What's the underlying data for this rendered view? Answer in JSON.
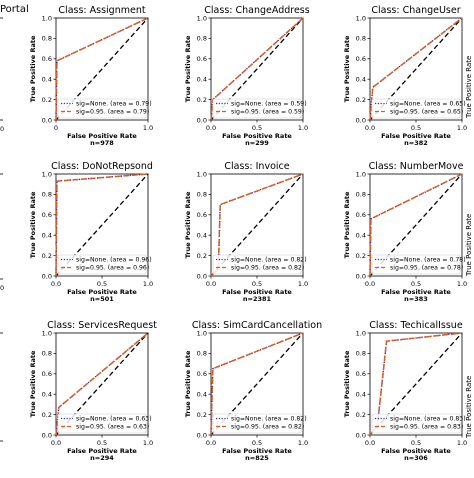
{
  "page": {
    "left_fragments": {
      "title": "Portal",
      "tick_zero": "0"
    },
    "right_fragment_label": "True Positive Rate"
  },
  "chart_data": [
    {
      "type": "line",
      "title": "Class: Assignment",
      "n_label": "n=978",
      "xlabel": "False Positive Rate",
      "ylabel": "True Positive Rate",
      "xlim": [
        0,
        1
      ],
      "ylim": [
        0,
        1
      ],
      "xticks": [
        "0",
        "1.0"
      ],
      "yticks": [
        "0.0",
        "0.2",
        "0.4",
        "0.6",
        "0.8",
        "1.0"
      ],
      "legend_position": "lower-right",
      "series": [
        {
          "name": "sig=None. (area = 0.79)",
          "style": "dotted",
          "color": "#2b2fa8",
          "points": [
            [
              0,
              0
            ],
            [
              0.01,
              0.58
            ],
            [
              1,
              1
            ]
          ]
        },
        {
          "name": "sig=0.95. (area = 0.79)",
          "style": "dashed",
          "color": "#e05a1e",
          "points": [
            [
              0,
              0
            ],
            [
              0.01,
              0.58
            ],
            [
              1,
              1
            ]
          ]
        }
      ],
      "reference_line": {
        "style": "dashed",
        "color": "#000000",
        "points": [
          [
            0,
            0
          ],
          [
            1,
            1
          ]
        ]
      }
    },
    {
      "type": "line",
      "title": "Class: ChangeAddress",
      "n_label": "n=299",
      "xlabel": "False Positive Rate",
      "ylabel": "True Positive Rate",
      "xlim": [
        0,
        1
      ],
      "ylim": [
        0,
        1
      ],
      "xticks": [
        "0.0",
        "0.5",
        "1.0"
      ],
      "yticks": [
        "0.0",
        "0.2",
        "0.4",
        "0.6",
        "0.8",
        "1.0"
      ],
      "legend_position": "lower-right",
      "series": [
        {
          "name": "sig=None. (area = 0.59)",
          "style": "dotted",
          "color": "#2b2fa8",
          "points": [
            [
              0,
              0
            ],
            [
              0.02,
              0.2
            ],
            [
              1,
              1
            ]
          ]
        },
        {
          "name": "sig=0.95. (area = 0.59)",
          "style": "dashed",
          "color": "#e05a1e",
          "points": [
            [
              0,
              0
            ],
            [
              0.02,
              0.2
            ],
            [
              1,
              1
            ]
          ]
        }
      ],
      "reference_line": {
        "style": "dashed",
        "color": "#000000",
        "points": [
          [
            0,
            0
          ],
          [
            1,
            1
          ]
        ]
      }
    },
    {
      "type": "line",
      "title": "Class: ChangeUser",
      "n_label": "n=382",
      "xlabel": "False Positive Rate",
      "ylabel": "True Positive Rate",
      "xlim": [
        0,
        1
      ],
      "ylim": [
        0,
        1
      ],
      "xticks": [
        "0.0",
        "0.5",
        "1.0"
      ],
      "yticks": [
        "0.0",
        "0.2",
        "0.4",
        "0.6",
        "0.8",
        "1.0"
      ],
      "legend_position": "lower-right",
      "series": [
        {
          "name": "sig=None. (area = 0.65)",
          "style": "dotted",
          "color": "#2b2fa8",
          "points": [
            [
              0,
              0
            ],
            [
              0.03,
              0.32
            ],
            [
              1,
              1
            ]
          ]
        },
        {
          "name": "sig=0.95. (area = 0.65)",
          "style": "dashed",
          "color": "#e05a1e",
          "points": [
            [
              0,
              0
            ],
            [
              0.03,
              0.32
            ],
            [
              1,
              1
            ]
          ]
        }
      ],
      "reference_line": {
        "style": "dashed",
        "color": "#000000",
        "points": [
          [
            0,
            0
          ],
          [
            1,
            1
          ]
        ]
      }
    },
    {
      "type": "line",
      "title": "Class: DoNotRepsond",
      "n_label": "n=501",
      "xlabel": "False Positive Rate",
      "ylabel": "True Positive Rate",
      "xlim": [
        0,
        1
      ],
      "ylim": [
        0,
        1
      ],
      "xticks": [
        "0.0",
        "0.5",
        "1.0"
      ],
      "yticks": [
        "0.0",
        "0.2",
        "0.4",
        "0.6",
        "0.8",
        "1.0"
      ],
      "legend_position": "lower-right",
      "series": [
        {
          "name": "sig=None. (area = 0.96)",
          "style": "dotted",
          "color": "#2b2fa8",
          "points": [
            [
              0,
              0
            ],
            [
              0.01,
              0.93
            ],
            [
              1,
              1
            ]
          ]
        },
        {
          "name": "sig=0.95. (area = 0.96)",
          "style": "dashed",
          "color": "#e05a1e",
          "points": [
            [
              0,
              0
            ],
            [
              0.01,
              0.93
            ],
            [
              1,
              1
            ]
          ]
        }
      ],
      "reference_line": {
        "style": "dashed",
        "color": "#000000",
        "points": [
          [
            0,
            0
          ],
          [
            1,
            1
          ]
        ]
      }
    },
    {
      "type": "line",
      "title": "Class: Invoice",
      "n_label": "n=2381",
      "xlabel": "False Positive Rate",
      "ylabel": "True Positive Rate",
      "xlim": [
        0,
        1
      ],
      "ylim": [
        0,
        1
      ],
      "xticks": [
        "0.0",
        "0.5",
        "1.0"
      ],
      "yticks": [
        "0.0",
        "0.2",
        "0.4",
        "0.6",
        "0.8",
        "1.0"
      ],
      "legend_position": "lower-right",
      "series": [
        {
          "name": "sig=None. (area = 0.82)",
          "style": "dotted",
          "color": "#2b2fa8",
          "points": [
            [
              0,
              0
            ],
            [
              0.08,
              0.07
            ],
            [
              0.1,
              0.7
            ],
            [
              1,
              1
            ]
          ]
        },
        {
          "name": "sig=0.95. (area = 0.82)",
          "style": "dashed",
          "color": "#e05a1e",
          "points": [
            [
              0,
              0
            ],
            [
              0.08,
              0.07
            ],
            [
              0.1,
              0.7
            ],
            [
              1,
              1
            ]
          ]
        }
      ],
      "reference_line": {
        "style": "dashed",
        "color": "#000000",
        "points": [
          [
            0,
            0
          ],
          [
            1,
            1
          ]
        ]
      }
    },
    {
      "type": "line",
      "title": "Class: NumberMove",
      "n_label": "n=383",
      "xlabel": "False Positive Rate",
      "ylabel": "True Positive Rate",
      "xlim": [
        0,
        1
      ],
      "ylim": [
        0,
        1
      ],
      "xticks": [
        "0.0",
        "0.5",
        "1.0"
      ],
      "yticks": [
        "0.0",
        "0.2",
        "0.4",
        "0.6",
        "0.8",
        "1.0"
      ],
      "legend_position": "lower-right",
      "series": [
        {
          "name": "sig=None. (area = 0.78)",
          "style": "dotted",
          "color": "#2b2fa8",
          "points": [
            [
              0,
              0
            ],
            [
              0.01,
              0.56
            ],
            [
              1,
              1
            ]
          ]
        },
        {
          "name": "sig=0.95. (area = 0.78)",
          "style": "dashed",
          "color": "#e05a1e",
          "points": [
            [
              0,
              0
            ],
            [
              0.01,
              0.56
            ],
            [
              1,
              1
            ]
          ]
        }
      ],
      "reference_line": {
        "style": "dashed",
        "color": "#000000",
        "points": [
          [
            0,
            0
          ],
          [
            1,
            1
          ]
        ]
      }
    },
    {
      "type": "line",
      "title": "Class: ServicesRequest",
      "n_label": "n=294",
      "xlabel": "False Positive Rate",
      "ylabel": "True Positive Rate",
      "xlim": [
        0,
        1
      ],
      "ylim": [
        0,
        1
      ],
      "xticks": [
        "0.0",
        "0.5",
        "1.0"
      ],
      "yticks": [
        "0.0",
        "0.2",
        "0.4",
        "0.6",
        "0.8",
        "1.0"
      ],
      "legend_position": "lower-right",
      "series": [
        {
          "name": "sig=None. (area = 0.63)",
          "style": "dotted",
          "color": "#2b2fa8",
          "points": [
            [
              0,
              0
            ],
            [
              0.03,
              0.27
            ],
            [
              1,
              1
            ]
          ]
        },
        {
          "name": "sig=0.95. (area = 0.63)",
          "style": "dashed",
          "color": "#e05a1e",
          "points": [
            [
              0,
              0
            ],
            [
              0.03,
              0.27
            ],
            [
              1,
              1
            ]
          ]
        }
      ],
      "reference_line": {
        "style": "dashed",
        "color": "#000000",
        "points": [
          [
            0,
            0
          ],
          [
            1,
            1
          ]
        ]
      }
    },
    {
      "type": "line",
      "title": "Class: SimCardCancellation",
      "n_label": "n=825",
      "xlabel": "False Positive Rate",
      "ylabel": "True Positive Rate",
      "xlim": [
        0,
        1
      ],
      "ylim": [
        0,
        1
      ],
      "xticks": [
        "0.0",
        "0.5",
        "1.0"
      ],
      "yticks": [
        "0.0",
        "0.2",
        "0.4",
        "0.6",
        "0.8",
        "1.0"
      ],
      "legend_position": "lower-right",
      "series": [
        {
          "name": "sig=None. (area = 0.82)",
          "style": "dotted",
          "color": "#2b2fa8",
          "points": [
            [
              0,
              0
            ],
            [
              0.02,
              0.65
            ],
            [
              1,
              1
            ]
          ]
        },
        {
          "name": "sig=0.95. (area = 0.82)",
          "style": "dashed",
          "color": "#e05a1e",
          "points": [
            [
              0,
              0
            ],
            [
              0.02,
              0.65
            ],
            [
              1,
              1
            ]
          ]
        }
      ],
      "reference_line": {
        "style": "dashed",
        "color": "#000000",
        "points": [
          [
            0,
            0
          ],
          [
            1,
            1
          ]
        ]
      }
    },
    {
      "type": "line",
      "title": "Class: TechicalIssue",
      "n_label": "n=306",
      "xlabel": "False Positive Rate",
      "ylabel": "True Positive Rate",
      "xlim": [
        0,
        1
      ],
      "ylim": [
        0,
        1
      ],
      "xticks": [
        "0.0",
        "0.5",
        "1.0"
      ],
      "yticks": [
        "0.0",
        "0.2",
        "0.4",
        "0.6",
        "0.8",
        "1.0"
      ],
      "legend_position": "lower-right",
      "series": [
        {
          "name": "sig=None. (area = 0.83)",
          "style": "dotted",
          "color": "#2b2fa8",
          "points": [
            [
              0,
              0
            ],
            [
              0.08,
              0.09
            ],
            [
              0.18,
              0.92
            ],
            [
              1,
              1
            ]
          ]
        },
        {
          "name": "sig=0.95. (area = 0.83)",
          "style": "dashed",
          "color": "#e05a1e",
          "points": [
            [
              0,
              0
            ],
            [
              0.08,
              0.09
            ],
            [
              0.18,
              0.92
            ],
            [
              1,
              1
            ]
          ]
        }
      ],
      "reference_line": {
        "style": "dashed",
        "color": "#000000",
        "points": [
          [
            0,
            0
          ],
          [
            1,
            1
          ]
        ]
      }
    }
  ]
}
